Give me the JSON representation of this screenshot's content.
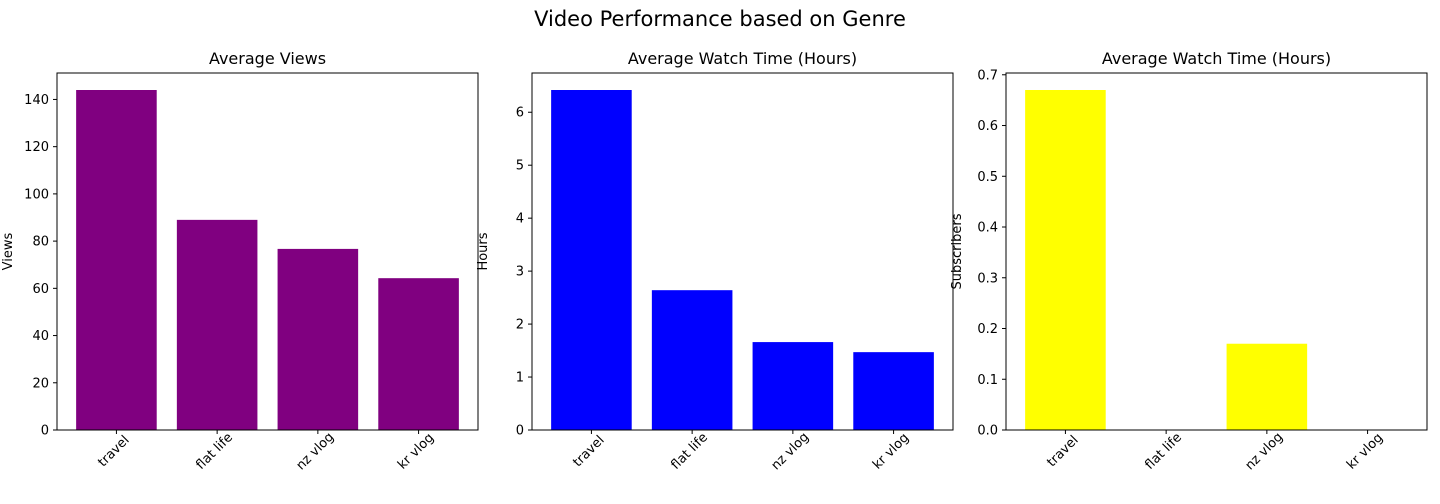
{
  "figure": {
    "suptitle": "Video Performance based on Genre"
  },
  "chart_data": [
    {
      "type": "bar",
      "title": "Average Views",
      "xlabel": "",
      "ylabel": "Views",
      "categories": [
        "travel",
        "flat life",
        "nz vlog",
        "kr vlog"
      ],
      "values": [
        144,
        89,
        76.7,
        64.3
      ],
      "ylim": [
        0,
        151.2
      ],
      "yticks": [
        0,
        20,
        40,
        60,
        80,
        100,
        120,
        140
      ],
      "color": "#800080",
      "grid": false
    },
    {
      "type": "bar",
      "title": "Average Watch Time (Hours)",
      "xlabel": "",
      "ylabel": "Hours",
      "categories": [
        "travel",
        "flat life",
        "nz vlog",
        "kr vlog"
      ],
      "values": [
        6.42,
        2.64,
        1.66,
        1.47
      ],
      "ylim": [
        0,
        6.741
      ],
      "yticks": [
        0,
        1,
        2,
        3,
        4,
        5,
        6
      ],
      "color": "#0000ff",
      "grid": false
    },
    {
      "type": "bar",
      "title": "Average Watch Time (Hours)",
      "xlabel": "",
      "ylabel": "Subscribers",
      "categories": [
        "travel",
        "flat life",
        "nz vlog",
        "kr vlog"
      ],
      "values": [
        0.67,
        0,
        0.17,
        0
      ],
      "ylim": [
        0,
        0.7035
      ],
      "yticks": [
        "0.0",
        "0.1",
        "0.2",
        "0.3",
        "0.4",
        "0.5",
        "0.6",
        "0.7"
      ],
      "color": "#ffff00",
      "grid": false
    }
  ]
}
